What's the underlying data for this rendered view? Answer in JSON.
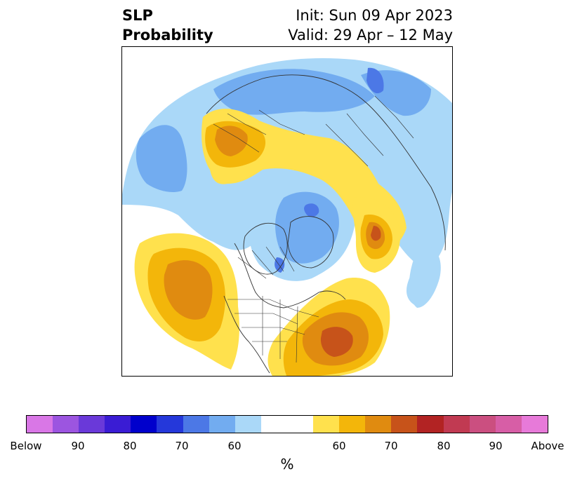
{
  "header": {
    "variable_line1": "SLP",
    "variable_line2": "Probability",
    "init_text": "Init: Sun 09 Apr 2023",
    "valid_text": "Valid: 29 Apr – 12 May"
  },
  "map": {
    "projection": "north-polar-stereographic",
    "features": [
      "coastlines",
      "country-borders",
      "us-state-borders",
      "canadian-province-borders"
    ]
  },
  "colorbar": {
    "unit": "%",
    "colors": [
      "#d977e6",
      "#9c55e0",
      "#6a39d9",
      "#3a1cd4",
      "#0000cc",
      "#2538da",
      "#4c78e6",
      "#72acf0",
      "#aad8f8",
      "#ffffff",
      "#ffffff",
      "#ffe14d",
      "#f3b60a",
      "#e08b10",
      "#c7531a",
      "#b22323",
      "#c13a52",
      "#cb4f80",
      "#d75ea6",
      "#e77ad9"
    ],
    "tick_labels": [
      "Below",
      "90",
      "80",
      "70",
      "60",
      "60",
      "70",
      "80",
      "90",
      "Above"
    ]
  },
  "legend_colors": {
    "below_light": "#aad8f8",
    "below_mid": "#72acf0",
    "below_strong": "#4c78e6",
    "above_light": "#ffe14d",
    "above_mid": "#f3b60a",
    "above_strong": "#e08b10",
    "above_strongest": "#c7531a"
  }
}
